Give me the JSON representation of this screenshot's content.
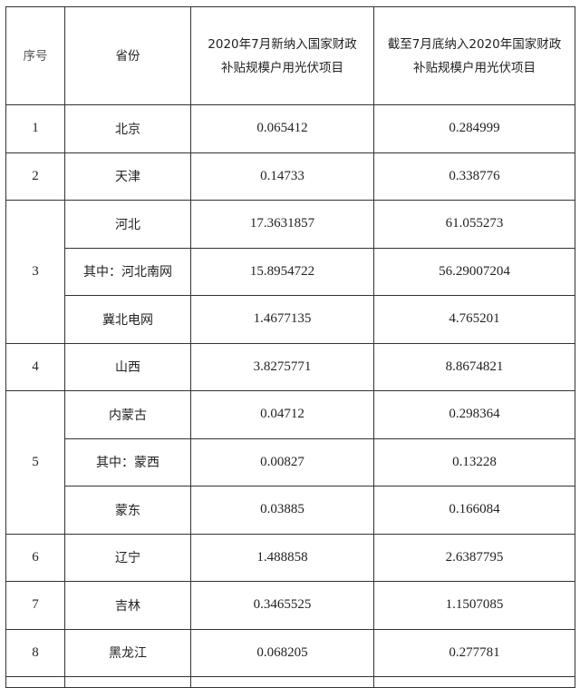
{
  "header": {
    "seq": "序号",
    "province": "省份",
    "col_new": "2020年7月新纳入国家财政补贴规模户用光伏项目",
    "col_total": "截至7月底纳入2020年国家财政补贴规模户用光伏项目"
  },
  "rows": [
    {
      "seq": "1",
      "province": "北京",
      "new": "0.065412",
      "total": "0.284999"
    },
    {
      "seq": "2",
      "province": "天津",
      "new": "0.14733",
      "total": "0.338776"
    },
    {
      "seq": "3",
      "province": "河北",
      "new": "17.3631857",
      "total": "61.055273"
    },
    {
      "province": "其中：河北南网",
      "new": "15.8954722",
      "total": "56.29007204"
    },
    {
      "province": "冀北电网",
      "new": "1.4677135",
      "total": "4.765201"
    },
    {
      "seq": "4",
      "province": "山西",
      "new": "3.8275771",
      "total": "8.8674821"
    },
    {
      "seq": "5",
      "province": "内蒙古",
      "new": "0.04712",
      "total": "0.298364"
    },
    {
      "province": "其中：蒙西",
      "new": "0.00827",
      "total": "0.13228"
    },
    {
      "province": "蒙东",
      "new": "0.03885",
      "total": "0.166084"
    },
    {
      "seq": "6",
      "province": "辽宁",
      "new": "1.488858",
      "total": "2.6387795"
    },
    {
      "seq": "7",
      "province": "吉林",
      "new": "0.3465525",
      "total": "1.1507085"
    },
    {
      "seq": "8",
      "province": "黑龙江",
      "new": "0.068205",
      "total": "0.277781"
    }
  ]
}
